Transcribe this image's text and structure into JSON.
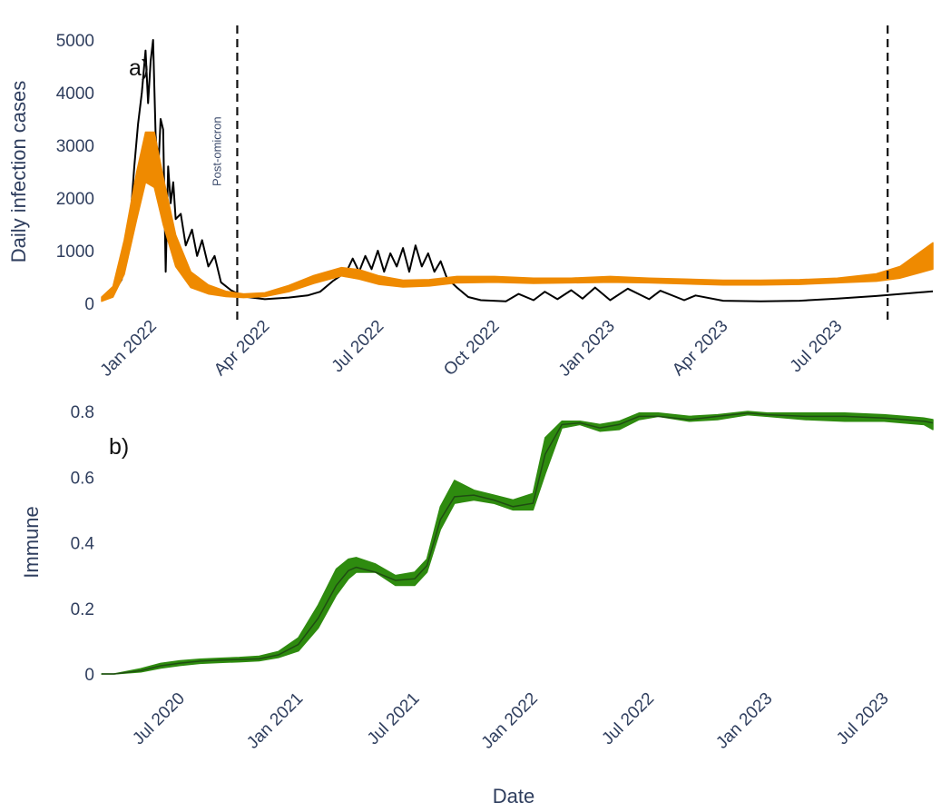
{
  "chart_data": [
    {
      "type": "line",
      "panel_label": "a)",
      "xlabel": "",
      "ylabel": "Daily infection cases",
      "ylim": [
        0,
        5000
      ],
      "y_ticks": [
        "0",
        "1000",
        "2000",
        "3000",
        "4000",
        "5000"
      ],
      "x_ticks": [
        {
          "label": "Jan 2022",
          "date": "2022-01-01"
        },
        {
          "label": "Apr 2022",
          "date": "2022-04-01"
        },
        {
          "label": "Jul 2022",
          "date": "2022-07-01"
        },
        {
          "label": "Oct 2022",
          "date": "2022-10-01"
        },
        {
          "label": "Jan 2023",
          "date": "2023-01-01"
        },
        {
          "label": "Apr 2023",
          "date": "2023-04-01"
        },
        {
          "label": "Jul 2023",
          "date": "2023-07-01"
        }
      ],
      "xlim": [
        "2021-11-22",
        "2023-09-15"
      ],
      "vlines": [
        {
          "date": "2022-03-10",
          "label": "Post-omicron"
        },
        {
          "date": "2023-08-10",
          "label": ""
        }
      ],
      "series": [
        {
          "kind": "observed",
          "color": "#000000",
          "points": [
            [
              "2021-11-22",
              60
            ],
            [
              "2021-11-30",
              150
            ],
            [
              "2021-12-08",
              450
            ],
            [
              "2021-12-14",
              1300
            ],
            [
              "2021-12-18",
              2600
            ],
            [
              "2021-12-21",
              3400
            ],
            [
              "2021-12-24",
              4000
            ],
            [
              "2021-12-27",
              4800
            ],
            [
              "2021-12-29",
              3800
            ],
            [
              "2021-12-31",
              4600
            ],
            [
              "2022-01-02",
              5000
            ],
            [
              "2022-01-04",
              3200
            ],
            [
              "2022-01-06",
              2500
            ],
            [
              "2022-01-08",
              3500
            ],
            [
              "2022-01-10",
              3300
            ],
            [
              "2022-01-12",
              600
            ],
            [
              "2022-01-14",
              2600
            ],
            [
              "2022-01-16",
              1900
            ],
            [
              "2022-01-18",
              2300
            ],
            [
              "2022-01-20",
              1600
            ],
            [
              "2022-01-24",
              1700
            ],
            [
              "2022-01-28",
              1100
            ],
            [
              "2022-02-02",
              1400
            ],
            [
              "2022-02-06",
              900
            ],
            [
              "2022-02-10",
              1200
            ],
            [
              "2022-02-15",
              700
            ],
            [
              "2022-02-20",
              900
            ],
            [
              "2022-02-25",
              400
            ],
            [
              "2022-03-05",
              250
            ],
            [
              "2022-03-15",
              130
            ],
            [
              "2022-04-01",
              80
            ],
            [
              "2022-04-20",
              110
            ],
            [
              "2022-05-05",
              150
            ],
            [
              "2022-05-15",
              220
            ],
            [
              "2022-05-25",
              420
            ],
            [
              "2022-06-05",
              600
            ],
            [
              "2022-06-10",
              850
            ],
            [
              "2022-06-15",
              600
            ],
            [
              "2022-06-20",
              900
            ],
            [
              "2022-06-25",
              650
            ],
            [
              "2022-06-30",
              1000
            ],
            [
              "2022-07-05",
              600
            ],
            [
              "2022-07-10",
              950
            ],
            [
              "2022-07-15",
              700
            ],
            [
              "2022-07-20",
              1050
            ],
            [
              "2022-07-25",
              600
            ],
            [
              "2022-07-30",
              1100
            ],
            [
              "2022-08-04",
              700
            ],
            [
              "2022-08-09",
              950
            ],
            [
              "2022-08-14",
              600
            ],
            [
              "2022-08-19",
              800
            ],
            [
              "2022-08-24",
              480
            ],
            [
              "2022-09-01",
              300
            ],
            [
              "2022-09-10",
              120
            ],
            [
              "2022-09-20",
              60
            ],
            [
              "2022-10-10",
              40
            ],
            [
              "2022-10-20",
              180
            ],
            [
              "2022-11-01",
              60
            ],
            [
              "2022-11-10",
              220
            ],
            [
              "2022-11-20",
              80
            ],
            [
              "2022-12-01",
              250
            ],
            [
              "2022-12-10",
              90
            ],
            [
              "2022-12-20",
              300
            ],
            [
              "2023-01-01",
              60
            ],
            [
              "2023-01-15",
              280
            ],
            [
              "2023-02-01",
              80
            ],
            [
              "2023-02-10",
              240
            ],
            [
              "2023-03-01",
              60
            ],
            [
              "2023-03-10",
              150
            ],
            [
              "2023-04-01",
              50
            ],
            [
              "2023-05-01",
              40
            ],
            [
              "2023-06-01",
              50
            ],
            [
              "2023-07-01",
              90
            ],
            [
              "2023-08-01",
              140
            ],
            [
              "2023-09-15",
              230
            ]
          ]
        },
        {
          "kind": "model-band",
          "color": "#ef8a00",
          "dates": [
            "2021-11-22",
            "2021-12-01",
            "2021-12-10",
            "2021-12-20",
            "2021-12-27",
            "2022-01-03",
            "2022-01-10",
            "2022-01-20",
            "2022-02-01",
            "2022-02-15",
            "2022-03-01",
            "2022-03-15",
            "2022-04-01",
            "2022-04-20",
            "2022-05-10",
            "2022-06-01",
            "2022-06-15",
            "2022-07-01",
            "2022-07-20",
            "2022-08-10",
            "2022-09-01",
            "2022-10-01",
            "2022-11-01",
            "2022-12-01",
            "2023-01-01",
            "2023-02-01",
            "2023-03-01",
            "2023-04-01",
            "2023-05-01",
            "2023-06-01",
            "2023-07-01",
            "2023-08-01",
            "2023-08-20",
            "2023-09-15"
          ],
          "lower": [
            40,
            120,
            550,
            1600,
            2300,
            2200,
            1500,
            700,
            300,
            180,
            130,
            110,
            130,
            220,
            380,
            520,
            460,
            360,
            310,
            330,
            390,
            400,
            380,
            390,
            400,
            390,
            370,
            350,
            350,
            360,
            390,
            420,
            480,
            650
          ],
          "upper": [
            120,
            320,
            1200,
            2500,
            3250,
            3250,
            2400,
            1300,
            600,
            350,
            230,
            180,
            200,
            340,
            530,
            680,
            640,
            520,
            440,
            450,
            510,
            510,
            480,
            480,
            510,
            480,
            460,
            440,
            440,
            450,
            480,
            560,
            700,
            1150
          ]
        }
      ]
    },
    {
      "type": "area",
      "panel_label": "b)",
      "xlabel": "Date",
      "ylabel": "Immune",
      "ylim": [
        0,
        0.8
      ],
      "y_ticks": [
        "0",
        "0.2",
        "0.4",
        "0.6",
        "0.8"
      ],
      "x_ticks": [
        {
          "label": "Jul 2020",
          "date": "2020-07-01"
        },
        {
          "label": "Jan 2021",
          "date": "2021-01-01"
        },
        {
          "label": "Jul 2021",
          "date": "2021-07-01"
        },
        {
          "label": "Jan 2022",
          "date": "2022-01-01"
        },
        {
          "label": "Jul 2022",
          "date": "2022-07-01"
        },
        {
          "label": "Jan 2023",
          "date": "2023-01-01"
        },
        {
          "label": "Jul 2023",
          "date": "2023-07-01"
        }
      ],
      "xlim": [
        "2020-03-01",
        "2023-09-15"
      ],
      "series": [
        {
          "kind": "band-with-median",
          "color": "#2e8b0f",
          "line_color": "#1f4d12",
          "dates": [
            "2020-03-01",
            "2020-03-20",
            "2020-05-01",
            "2020-06-01",
            "2020-07-01",
            "2020-08-01",
            "2020-09-01",
            "2020-10-01",
            "2020-11-01",
            "2020-12-01",
            "2021-01-01",
            "2021-02-01",
            "2021-03-01",
            "2021-03-20",
            "2021-04-01",
            "2021-05-01",
            "2021-06-01",
            "2021-07-01",
            "2021-07-20",
            "2021-08-10",
            "2021-09-01",
            "2021-10-01",
            "2021-11-01",
            "2021-12-01",
            "2022-01-01",
            "2022-01-20",
            "2022-02-15",
            "2022-03-15",
            "2022-04-15",
            "2022-05-15",
            "2022-06-15",
            "2022-07-15",
            "2022-09-01",
            "2022-10-15",
            "2022-12-01",
            "2023-01-01",
            "2023-03-01",
            "2023-05-01",
            "2023-07-01",
            "2023-08-01",
            "2023-09-01",
            "2023-09-15"
          ],
          "lower": [
            0.0,
            0.0,
            0.006,
            0.018,
            0.026,
            0.032,
            0.035,
            0.037,
            0.04,
            0.05,
            0.07,
            0.14,
            0.24,
            0.29,
            0.31,
            0.31,
            0.27,
            0.27,
            0.31,
            0.44,
            0.52,
            0.53,
            0.52,
            0.5,
            0.5,
            0.61,
            0.75,
            0.76,
            0.74,
            0.745,
            0.775,
            0.785,
            0.77,
            0.775,
            0.79,
            0.785,
            0.775,
            0.77,
            0.77,
            0.765,
            0.76,
            0.745
          ],
          "median": [
            0.0,
            0.0,
            0.01,
            0.025,
            0.033,
            0.039,
            0.042,
            0.044,
            0.046,
            0.058,
            0.09,
            0.17,
            0.27,
            0.315,
            0.325,
            0.31,
            0.285,
            0.29,
            0.33,
            0.47,
            0.54,
            0.545,
            0.53,
            0.51,
            0.52,
            0.67,
            0.76,
            0.765,
            0.75,
            0.76,
            0.785,
            0.785,
            0.775,
            0.785,
            0.795,
            0.79,
            0.785,
            0.785,
            0.78,
            0.775,
            0.77,
            0.765
          ],
          "upper": [
            0.0,
            0.0,
            0.016,
            0.032,
            0.04,
            0.045,
            0.048,
            0.05,
            0.054,
            0.068,
            0.11,
            0.21,
            0.32,
            0.35,
            0.355,
            0.335,
            0.3,
            0.31,
            0.35,
            0.51,
            0.59,
            0.56,
            0.545,
            0.53,
            0.55,
            0.72,
            0.77,
            0.77,
            0.76,
            0.77,
            0.795,
            0.795,
            0.785,
            0.79,
            0.8,
            0.795,
            0.795,
            0.795,
            0.79,
            0.785,
            0.78,
            0.775
          ]
        }
      ]
    }
  ]
}
